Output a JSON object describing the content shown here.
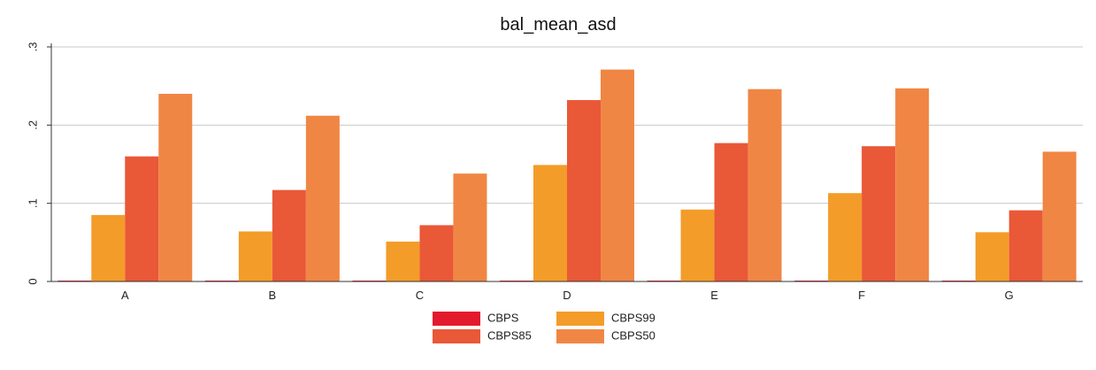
{
  "chart_data": {
    "type": "bar",
    "title": "bal_mean_asd",
    "categories": [
      "A",
      "B",
      "C",
      "D",
      "E",
      "F",
      "G"
    ],
    "series": [
      {
        "name": "CBPS",
        "color": "#e31a2c",
        "values": [
          0.001,
          0.001,
          0.001,
          0.001,
          0.001,
          0.001,
          0.001
        ]
      },
      {
        "name": "CBPS99",
        "color": "#f39c29",
        "values": [
          0.085,
          0.064,
          0.051,
          0.149,
          0.092,
          0.113,
          0.063
        ]
      },
      {
        "name": "CBPS85",
        "color": "#e95837",
        "values": [
          0.16,
          0.117,
          0.072,
          0.232,
          0.177,
          0.173,
          0.091
        ]
      },
      {
        "name": "CBPS50",
        "color": "#f08644",
        "values": [
          0.24,
          0.212,
          0.138,
          0.271,
          0.246,
          0.247,
          0.166
        ]
      }
    ],
    "ylim": [
      0,
      0.3
    ],
    "yticks": [
      0,
      0.1,
      0.2,
      0.3
    ],
    "ytick_labels": [
      "0",
      ".1",
      ".2",
      ".3"
    ],
    "grid": true,
    "legend_position": "bottom",
    "legend_columns": 2
  }
}
